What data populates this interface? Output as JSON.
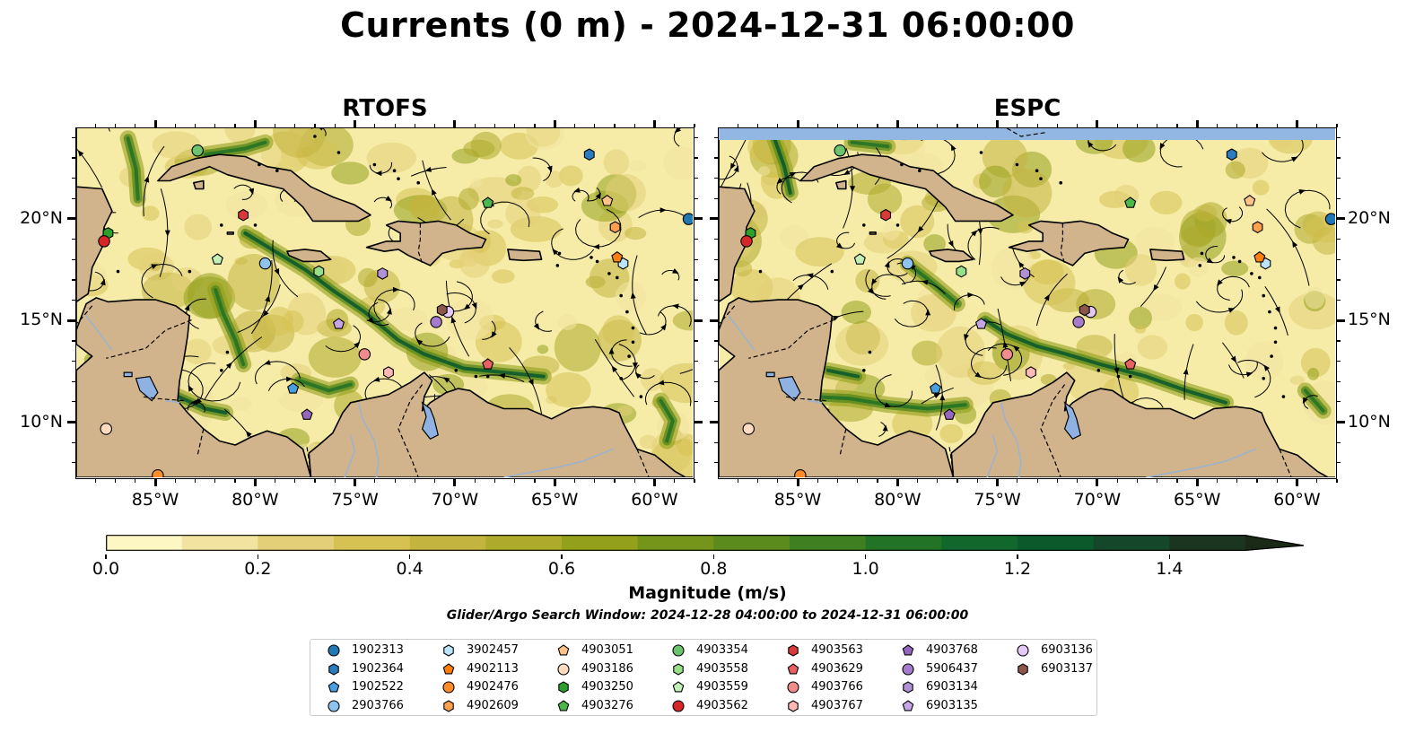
{
  "title": "Currents (0 m) - 2024-12-31 06:00:00",
  "panels": [
    {
      "name": "RTOFS"
    },
    {
      "name": "ESPC"
    }
  ],
  "lon_ticks": [
    "85°W",
    "80°W",
    "75°W",
    "70°W",
    "65°W",
    "60°W"
  ],
  "lat_ticks": [
    "20°N",
    "15°N",
    "10°N"
  ],
  "map_extent": {
    "lon": [
      -89,
      -58
    ],
    "lat": [
      7.2,
      24.5
    ]
  },
  "colorbar": {
    "label": "Magnitude (m/s)",
    "ticks": [
      "0.0",
      "0.2",
      "0.4",
      "0.6",
      "0.8",
      "1.0",
      "1.2",
      "1.4"
    ],
    "range": [
      0,
      1.5
    ],
    "extend": "max",
    "colors": [
      "#fdf7c3",
      "#f2e3a0",
      "#e3cf77",
      "#d5c253",
      "#c3b43f",
      "#aeaa2b",
      "#93a01c",
      "#75951a",
      "#5b8a1d",
      "#3f7f22",
      "#237326",
      "#12672d",
      "#0c5a2c",
      "#15472a",
      "#1b3520",
      "#1a2a16"
    ]
  },
  "search_window": "Glider/Argo Search Window: 2024-12-28 04:00:00 to 2024-12-31 06:00:00",
  "colors": {
    "land": "#d2b48c",
    "ocean_background": "#f6eca8",
    "lake": "#8fb2e2",
    "strip": "#93b7e3"
  },
  "floats": [
    {
      "id": "1902313",
      "marker": "circle",
      "color": "#1f77b4",
      "rtofs": [
        -58.2,
        20.0
      ],
      "espc": [
        -58.2,
        20.0
      ]
    },
    {
      "id": "1902364",
      "marker": "hexagon",
      "color": "#2a7bbf",
      "rtofs": [
        -63.2,
        23.2
      ],
      "espc": [
        -63.2,
        23.2
      ]
    },
    {
      "id": "1902522",
      "marker": "pentagon",
      "color": "#4a9ee0",
      "rtofs": [
        -78.1,
        11.6
      ],
      "espc": [
        -78.1,
        11.6
      ]
    },
    {
      "id": "2903766",
      "marker": "circle",
      "color": "#8ec3ee",
      "rtofs": [
        -79.5,
        17.8
      ],
      "espc": [
        -79.5,
        17.8
      ]
    },
    {
      "id": "3902457",
      "marker": "hexagon",
      "color": "#b9e4fa",
      "rtofs": [
        -61.5,
        17.8
      ],
      "espc": [
        -61.5,
        17.8
      ]
    },
    {
      "id": "4902113",
      "marker": "pentagon",
      "color": "#ff7f0e",
      "rtofs": [
        -61.8,
        18.1
      ],
      "espc": [
        -61.8,
        18.1
      ]
    },
    {
      "id": "4902476",
      "marker": "circle",
      "color": "#ff8c2a",
      "rtofs": [
        -84.9,
        7.3
      ],
      "espc": [
        -84.9,
        7.3
      ]
    },
    {
      "id": "4902609",
      "marker": "hexagon",
      "color": "#ffa04f",
      "rtofs": [
        -61.9,
        19.6
      ],
      "espc": [
        -61.9,
        19.6
      ]
    },
    {
      "id": "4903051",
      "marker": "pentagon",
      "color": "#ffc38a",
      "rtofs": [
        -62.3,
        20.9
      ],
      "espc": [
        -62.3,
        20.9
      ]
    },
    {
      "id": "4903186",
      "marker": "circle",
      "color": "#ffdcbf",
      "rtofs": [
        -87.5,
        9.6
      ],
      "espc": [
        -87.5,
        9.6
      ]
    },
    {
      "id": "4903250",
      "marker": "hexagon",
      "color": "#2ca02c",
      "rtofs": [
        -87.4,
        19.3
      ],
      "espc": [
        -87.4,
        19.3
      ]
    },
    {
      "id": "4903276",
      "marker": "pentagon",
      "color": "#4cb84c",
      "rtofs": [
        -68.3,
        20.8
      ],
      "espc": [
        -68.3,
        20.8
      ]
    },
    {
      "id": "4903354",
      "marker": "circle",
      "color": "#6cc46c",
      "rtofs": [
        -82.9,
        23.4
      ],
      "espc": [
        -82.9,
        23.4
      ]
    },
    {
      "id": "4903558",
      "marker": "hexagon",
      "color": "#98df8a",
      "rtofs": [
        -76.8,
        17.4
      ],
      "espc": [
        -76.8,
        17.4
      ]
    },
    {
      "id": "4903559",
      "marker": "pentagon",
      "color": "#c4f0b8",
      "rtofs": [
        -81.9,
        18.0
      ],
      "espc": [
        -81.9,
        18.0
      ]
    },
    {
      "id": "4903562",
      "marker": "circle",
      "color": "#d62728",
      "rtofs": [
        -87.6,
        18.9
      ],
      "espc": [
        -87.6,
        18.9
      ]
    },
    {
      "id": "4903563",
      "marker": "hexagon",
      "color": "#d83a3a",
      "rtofs": [
        -80.6,
        20.2
      ],
      "espc": [
        -80.6,
        20.2
      ]
    },
    {
      "id": "4903629",
      "marker": "pentagon",
      "color": "#e86060",
      "rtofs": [
        -68.3,
        12.8
      ],
      "espc": [
        -68.3,
        12.8
      ]
    },
    {
      "id": "4903766",
      "marker": "circle",
      "color": "#f08c8c",
      "rtofs": [
        -74.5,
        13.3
      ],
      "espc": [
        -74.5,
        13.3
      ]
    },
    {
      "id": "4903767",
      "marker": "hexagon",
      "color": "#ffb8b8",
      "rtofs": [
        -73.3,
        12.4
      ],
      "espc": [
        -73.3,
        12.4
      ]
    },
    {
      "id": "4903768",
      "marker": "pentagon",
      "color": "#9467bd",
      "rtofs": [
        -77.4,
        10.3
      ],
      "espc": [
        -77.4,
        10.3
      ]
    },
    {
      "id": "5906437",
      "marker": "circle",
      "color": "#a57ccc",
      "rtofs": [
        -70.9,
        14.9
      ],
      "espc": [
        -70.9,
        14.9
      ]
    },
    {
      "id": "6903134",
      "marker": "hexagon",
      "color": "#b191d6",
      "rtofs": [
        -73.6,
        17.3
      ],
      "espc": [
        -73.6,
        17.3
      ]
    },
    {
      "id": "6903135",
      "marker": "pentagon",
      "color": "#c5a5e6",
      "rtofs": [
        -75.8,
        14.8
      ],
      "espc": [
        -75.8,
        14.8
      ]
    },
    {
      "id": "6903136",
      "marker": "circle",
      "color": "#e4c8f5",
      "rtofs": [
        -70.3,
        15.4
      ],
      "espc": [
        -70.3,
        15.4
      ]
    },
    {
      "id": "6903137",
      "marker": "hexagon",
      "color": "#8c564b",
      "rtofs": [
        -70.6,
        15.5
      ],
      "espc": [
        -70.6,
        15.5
      ]
    }
  ]
}
